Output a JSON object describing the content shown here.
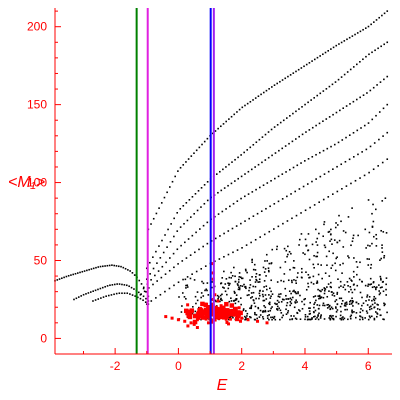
{
  "chart_data": {
    "type": "scatter",
    "title": "",
    "xlabel": "E",
    "ylabel": "<M₁>",
    "xlim": [
      -3.9,
      6.75
    ],
    "ylim": [
      -10,
      212
    ],
    "xticks": [
      -2,
      0,
      2,
      4,
      6
    ],
    "yticks": [
      0,
      50,
      100,
      150,
      200
    ],
    "grid": false,
    "axis_color": "#ff0000",
    "vertical_lines": [
      {
        "x": -1.32,
        "color": "#008000"
      },
      {
        "x": -0.97,
        "color": "#e020e0"
      },
      {
        "x": 1.02,
        "color": "#0000ff"
      },
      {
        "x": 1.12,
        "color": "#a020f0"
      }
    ],
    "series": [
      {
        "color": "#000000",
        "marker_size": 1.6,
        "curves": [
          {
            "x_start": -0.95,
            "x_end": 6.6,
            "n": 90,
            "points": [
              [
                -0.95,
                70
              ],
              [
                0,
                108
              ],
              [
                1,
                130
              ],
              [
                2,
                148
              ],
              [
                3,
                162
              ],
              [
                4,
                175
              ],
              [
                5,
                188
              ],
              [
                6,
                200
              ],
              [
                6.6,
                210
              ]
            ]
          },
          {
            "x_start": -1.0,
            "x_end": 6.6,
            "n": 80,
            "points": [
              [
                -1.0,
                45
              ],
              [
                0,
                82
              ],
              [
                1,
                102
              ],
              [
                2,
                118
              ],
              [
                3,
                135
              ],
              [
                4,
                150
              ],
              [
                5,
                165
              ],
              [
                6,
                182
              ],
              [
                6.6,
                190
              ]
            ]
          },
          {
            "x_start": -1.0,
            "x_end": 6.6,
            "n": 72,
            "points": [
              [
                -1.0,
                38
              ],
              [
                0,
                70
              ],
              [
                1,
                90
              ],
              [
                2,
                104
              ],
              [
                3,
                118
              ],
              [
                4,
                132
              ],
              [
                5,
                145
              ],
              [
                6,
                158
              ],
              [
                6.6,
                168
              ]
            ]
          },
          {
            "x_start": -1.1,
            "x_end": 6.6,
            "n": 66,
            "points": [
              [
                -1.1,
                32
              ],
              [
                0,
                58
              ],
              [
                1,
                76
              ],
              [
                2,
                90
              ],
              [
                3,
                102
              ],
              [
                4,
                114
              ],
              [
                5,
                125
              ],
              [
                6,
                138
              ],
              [
                6.6,
                150
              ]
            ]
          },
          {
            "x_start": -1.2,
            "x_end": 6.6,
            "n": 60,
            "points": [
              [
                -1.2,
                28
              ],
              [
                0,
                48
              ],
              [
                1,
                62
              ],
              [
                2,
                74
              ],
              [
                3,
                86
              ],
              [
                4,
                98
              ],
              [
                5,
                110
              ],
              [
                6,
                122
              ],
              [
                6.6,
                132
              ]
            ]
          },
          {
            "x_start": -1.0,
            "x_end": 6.6,
            "n": 54,
            "points": [
              [
                -1.0,
                22
              ],
              [
                0,
                36
              ],
              [
                1,
                48
              ],
              [
                2,
                58
              ],
              [
                3,
                70
              ],
              [
                4,
                82
              ],
              [
                5,
                94
              ],
              [
                6,
                106
              ],
              [
                6.6,
                115
              ]
            ]
          },
          {
            "x_start": -3.9,
            "x_end": -0.95,
            "n": 42,
            "points": [
              [
                -3.9,
                37
              ],
              [
                -3.5,
                40
              ],
              [
                -3.0,
                43
              ],
              [
                -2.5,
                46
              ],
              [
                -2.1,
                47
              ],
              [
                -1.8,
                46
              ],
              [
                -1.5,
                43
              ],
              [
                -1.3,
                39
              ],
              [
                -1.1,
                33
              ],
              [
                -0.95,
                27
              ]
            ]
          },
          {
            "x_start": -3.3,
            "x_end": -0.95,
            "n": 32,
            "points": [
              [
                -3.3,
                25
              ],
              [
                -3.0,
                28
              ],
              [
                -2.6,
                31
              ],
              [
                -2.2,
                34
              ],
              [
                -1.9,
                35
              ],
              [
                -1.6,
                34
              ],
              [
                -1.35,
                31
              ],
              [
                -1.15,
                28
              ],
              [
                -0.95,
                24
              ]
            ]
          },
          {
            "x_start": -2.7,
            "x_end": -0.95,
            "n": 22,
            "points": [
              [
                -2.7,
                24
              ],
              [
                -2.3,
                27
              ],
              [
                -1.9,
                29
              ],
              [
                -1.6,
                29
              ],
              [
                -1.35,
                27
              ],
              [
                -1.15,
                25
              ],
              [
                -0.95,
                22
              ]
            ]
          }
        ],
        "scatter_region": {
          "x_min": 1.2,
          "x_max": 6.6,
          "y_min": 12,
          "y_max": 95,
          "count": 520
        },
        "lower_band": {
          "x_min": 0.0,
          "x_max": 6.6,
          "y_min": 12,
          "y_max": 40,
          "count": 260
        }
      },
      {
        "color": "#ff0000",
        "marker_size": 3,
        "cluster": {
          "points": [
            [
              -0.4,
              14
            ],
            [
              -0.2,
              13
            ],
            [
              0.0,
              12
            ],
            [
              0.2,
              11
            ],
            [
              0.4,
              10
            ],
            [
              0.5,
              9
            ],
            [
              0.6,
              12
            ],
            [
              0.7,
              14
            ],
            [
              0.8,
              13
            ],
            [
              0.9,
              15
            ],
            [
              1.0,
              18
            ],
            [
              1.05,
              22
            ],
            [
              1.1,
              25
            ],
            [
              1.15,
              28
            ],
            [
              1.2,
              20
            ],
            [
              1.3,
              16
            ],
            [
              1.4,
              19
            ],
            [
              1.5,
              17
            ],
            [
              1.6,
              15
            ],
            [
              1.7,
              18
            ],
            [
              1.8,
              16
            ],
            [
              1.9,
              14
            ],
            [
              2.0,
              13
            ],
            [
              2.2,
              12
            ],
            [
              2.5,
              11
            ],
            [
              2.8,
              10
            ],
            [
              1.1,
              42
            ],
            [
              1.05,
              48
            ],
            [
              1.1,
              38
            ],
            [
              0.4,
              16
            ],
            [
              0.3,
              8
            ],
            [
              0.6,
              7
            ],
            [
              0.85,
              22
            ],
            [
              1.25,
              24
            ],
            [
              1.35,
              21
            ],
            [
              0.95,
              10
            ]
          ],
          "extra_random": {
            "x_center": 1.1,
            "y_center": 16,
            "x_spread": 1.2,
            "y_spread": 8,
            "count": 140
          }
        }
      }
    ]
  }
}
